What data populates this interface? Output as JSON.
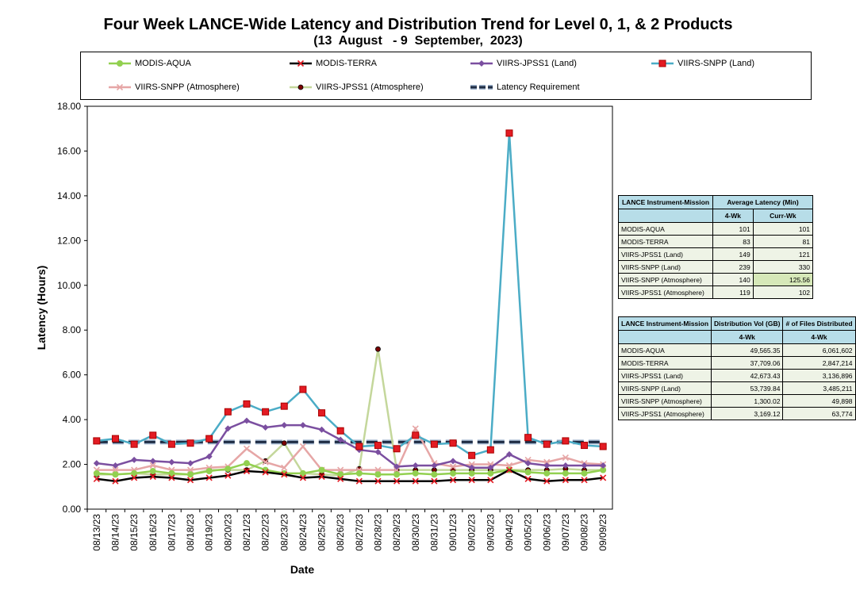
{
  "title": "Four Week LANCE-Wide Latency and Distribution Trend for Level 0, 1, & 2 Products",
  "subtitle": "(13  August   - 9  September,  2023)",
  "chart_data": {
    "type": "line",
    "xlabel": "Date",
    "ylabel": "Latency (Hours)",
    "ylim": [
      0,
      18
    ],
    "yticks": [
      "0.00",
      "2.00",
      "4.00",
      "6.00",
      "8.00",
      "10.00",
      "12.00",
      "14.00",
      "16.00",
      "18.00"
    ],
    "categories": [
      "08/13/23",
      "08/14/23",
      "08/15/23",
      "08/16/23",
      "08/17/23",
      "08/18/23",
      "08/19/23",
      "08/20/23",
      "08/21/23",
      "08/22/23",
      "08/23/23",
      "08/24/23",
      "08/25/23",
      "08/26/23",
      "08/27/23",
      "08/28/23",
      "08/29/23",
      "08/30/23",
      "08/31/23",
      "09/01/23",
      "09/02/23",
      "09/03/23",
      "09/04/23",
      "09/05/23",
      "09/06/23",
      "09/07/23",
      "09/08/23",
      "09/09/23"
    ],
    "legend_position": "top",
    "series": [
      {
        "name": "MODIS-AQUA",
        "color": "#92d050",
        "marker": "circle",
        "values": [
          1.6,
          1.55,
          1.6,
          1.7,
          1.6,
          1.55,
          1.7,
          1.8,
          2.05,
          1.75,
          1.6,
          1.6,
          1.75,
          1.55,
          1.6,
          1.55,
          1.55,
          1.6,
          1.55,
          1.6,
          1.6,
          1.6,
          1.75,
          1.65,
          1.6,
          1.6,
          1.6,
          1.75
        ]
      },
      {
        "name": "MODIS-TERRA",
        "color": "#000000",
        "marker": "x",
        "values": [
          1.35,
          1.25,
          1.4,
          1.45,
          1.4,
          1.3,
          1.4,
          1.5,
          1.7,
          1.65,
          1.55,
          1.4,
          1.45,
          1.35,
          1.25,
          1.25,
          1.25,
          1.25,
          1.25,
          1.3,
          1.3,
          1.3,
          1.75,
          1.35,
          1.25,
          1.3,
          1.3,
          1.4
        ]
      },
      {
        "name": "VIIRS-JPSS1 (Land)",
        "color": "#7b4fa0",
        "marker": "diamond",
        "values": [
          2.05,
          1.95,
          2.2,
          2.15,
          2.1,
          2.05,
          2.35,
          3.6,
          3.95,
          3.65,
          3.75,
          3.75,
          3.55,
          3.1,
          2.65,
          2.55,
          1.9,
          1.95,
          1.95,
          2.15,
          1.85,
          1.85,
          2.45,
          2.05,
          1.95,
          1.95,
          1.95,
          1.95
        ]
      },
      {
        "name": "VIIRS-SNPP (Land)",
        "color": "#4bacc6",
        "marker": "square",
        "values": [
          3.05,
          3.15,
          2.9,
          3.3,
          2.9,
          2.95,
          3.15,
          4.35,
          4.7,
          4.35,
          4.6,
          5.35,
          4.3,
          3.5,
          2.8,
          2.85,
          2.7,
          3.3,
          2.9,
          2.95,
          2.4,
          2.65,
          16.8,
          3.2,
          2.9,
          3.05,
          2.85,
          2.8
        ]
      },
      {
        "name": "VIIRS-SNPP (Atmosphere)",
        "color": "#e6a6a6",
        "marker": "x",
        "values": [
          1.75,
          1.75,
          1.75,
          1.95,
          1.75,
          1.75,
          1.85,
          1.9,
          2.7,
          2.1,
          1.85,
          2.8,
          1.75,
          1.75,
          1.75,
          1.75,
          1.75,
          3.6,
          2.05,
          1.9,
          2.0,
          2.0,
          1.95,
          2.2,
          2.1,
          2.3,
          2.05,
          2.0
        ]
      },
      {
        "name": "VIIRS-JPSS1 (Atmosphere)",
        "color": "#c4d79b",
        "marker": "dot",
        "values": [
          1.55,
          1.55,
          1.6,
          1.55,
          1.55,
          1.55,
          1.75,
          1.75,
          1.75,
          2.15,
          2.95,
          1.6,
          1.55,
          1.5,
          1.8,
          7.15,
          1.75,
          1.75,
          1.75,
          1.75,
          1.75,
          1.75,
          1.75,
          1.75,
          1.75,
          1.8,
          1.75,
          1.75
        ]
      },
      {
        "name": "Latency Requirement",
        "color": "#1f2d44",
        "marker": "none",
        "dashed": true,
        "values": [
          3,
          3,
          3,
          3,
          3,
          3,
          3,
          3,
          3,
          3,
          3,
          3,
          3,
          3,
          3,
          3,
          3,
          3,
          3,
          3,
          3,
          3,
          3,
          3,
          3,
          3,
          3,
          3
        ]
      }
    ],
    "grid": false
  },
  "latency_table": {
    "header": [
      "LANCE Instrument-Mission",
      "Average Latency (Min)"
    ],
    "subheader": [
      "",
      "4-Wk",
      "Curr-Wk"
    ],
    "rows": [
      [
        "MODIS-AQUA",
        "101",
        "101"
      ],
      [
        "MODIS-TERRA",
        "83",
        "81"
      ],
      [
        "VIIRS-JPSS1 (Land)",
        "149",
        "121"
      ],
      [
        "VIIRS-SNPP (Land)",
        "239",
        "330"
      ],
      [
        "VIIRS-SNPP (Atmosphere)",
        "140",
        "125.56"
      ],
      [
        "VIIRS-JPSS1 (Atmosphere)",
        "119",
        "102"
      ]
    ]
  },
  "distribution_table": {
    "header": [
      "LANCE Instrument-Mission",
      "Distribution Vol (GB)",
      "# of Files Distributed"
    ],
    "subheader": [
      "",
      "4-Wk",
      "4-Wk"
    ],
    "rows": [
      [
        "MODIS-AQUA",
        "49,565.35",
        "6,061,602"
      ],
      [
        "MODIS-TERRA",
        "37,709.06",
        "2,847,214"
      ],
      [
        "VIIRS-JPSS1 (Land)",
        "42,673.43",
        "3,136,896"
      ],
      [
        "VIIRS-SNPP (Land)",
        "53,739.84",
        "3,485,211"
      ],
      [
        "VIIRS-SNPP (Atmosphere)",
        "1,300.02",
        "49,898"
      ],
      [
        "VIIRS-JPSS1 (Atmosphere)",
        "3,169.12",
        "63,774"
      ]
    ]
  }
}
